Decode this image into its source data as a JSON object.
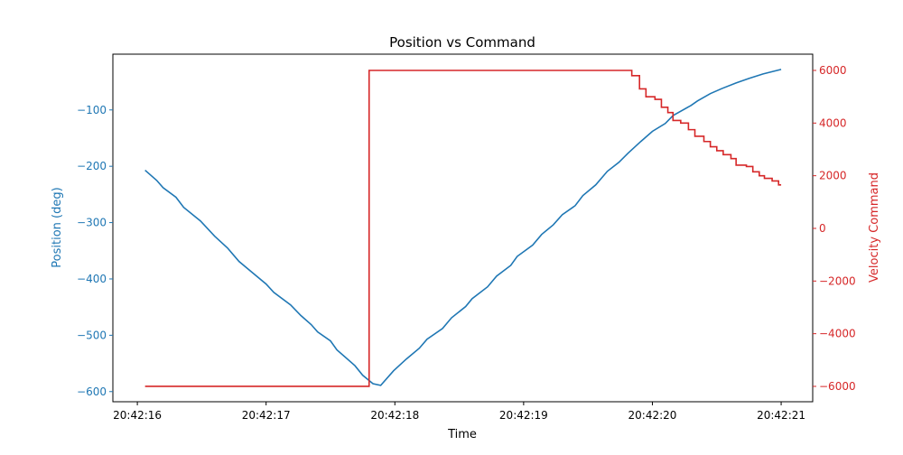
{
  "chart_data": {
    "type": "line",
    "title": "Position vs Command",
    "xlabel": "Time",
    "ylabel": "Position (deg)",
    "y2label": "Velocity Command",
    "colors": {
      "position": "#1f77b4",
      "command": "#d62728"
    },
    "grid": false,
    "xlim": [
      "20:42:15.81",
      "20:42:21.245"
    ],
    "ylim": [
      -618,
      -1
    ],
    "y2lim": [
      -6584,
      6617
    ],
    "xticks": [
      "20:42:16",
      "20:42:17",
      "20:42:18",
      "20:42:19",
      "20:42:20",
      "20:42:21"
    ],
    "yticks": [
      -600,
      -500,
      -400,
      -300,
      -200,
      -100
    ],
    "yticklabels": [
      "−600",
      "−500",
      "−400",
      "−300",
      "−200",
      "−100"
    ],
    "y2ticks": [
      -6000,
      -4000,
      -2000,
      0,
      2000,
      4000,
      6000
    ],
    "y2ticklabels": [
      "−6000",
      "−4000",
      "−2000",
      "0",
      "2000",
      "4000",
      "6000"
    ],
    "series": [
      {
        "axis": "left",
        "style": "line",
        "x": [
          "20:42:16.06",
          "20:42:16.15",
          "20:42:16.20",
          "20:42:16.30",
          "20:42:16.36",
          "20:42:16.49",
          "20:42:16.60",
          "20:42:16.70",
          "20:42:16.79",
          "20:42:16.90",
          "20:42:17.00",
          "20:42:17.06",
          "20:42:17.19",
          "20:42:17.27",
          "20:42:17.35",
          "20:42:17.40",
          "20:42:17.50",
          "20:42:17.55",
          "20:42:17.69",
          "20:42:17.75",
          "20:42:17.83",
          "20:42:17.89",
          "20:42:17.99",
          "20:42:18.09",
          "20:42:18.19",
          "20:42:18.25",
          "20:42:18.37",
          "20:42:18.44",
          "20:42:18.55",
          "20:42:18.60",
          "20:42:18.72",
          "20:42:18.79",
          "20:42:18.90",
          "20:42:18.95",
          "20:42:19.07",
          "20:42:19.14",
          "20:42:19.23",
          "20:42:19.30",
          "20:42:19.40",
          "20:42:19.46",
          "20:42:19.56",
          "20:42:19.65",
          "20:42:19.74",
          "20:42:19.81",
          "20:42:19.91",
          "20:42:20.00",
          "20:42:20.10",
          "20:42:20.16",
          "20:42:20.30",
          "20:42:20.35",
          "20:42:20.45",
          "20:42:20.54",
          "20:42:20.65",
          "20:42:20.75",
          "20:42:20.86",
          "20:42:21.00"
        ],
        "y": [
          -207,
          -225,
          -238,
          -255,
          -273,
          -297,
          -324,
          -345,
          -369,
          -390,
          -409,
          -424,
          -446,
          -465,
          -481,
          -494,
          -510,
          -526,
          -554,
          -571,
          -586,
          -589,
          -563,
          -542,
          -523,
          -507,
          -488,
          -469,
          -449,
          -435,
          -414,
          -395,
          -376,
          -360,
          -340,
          -321,
          -304,
          -286,
          -270,
          -252,
          -233,
          -209,
          -193,
          -177,
          -156,
          -138,
          -124,
          -110,
          -92,
          -84,
          -71,
          -62,
          -52,
          -44,
          -36,
          -28
        ]
      },
      {
        "axis": "right",
        "style": "step-post",
        "x": [
          "20:42:16.06",
          "20:42:17.80",
          "20:42:19.84",
          "20:42:19.90",
          "20:42:19.95",
          "20:42:20.02",
          "20:42:20.07",
          "20:42:20.12",
          "20:42:20.16",
          "20:42:20.22",
          "20:42:20.28",
          "20:42:20.33",
          "20:42:20.40",
          "20:42:20.45",
          "20:42:20.50",
          "20:42:20.55",
          "20:42:20.61",
          "20:42:20.65",
          "20:42:20.73",
          "20:42:20.78",
          "20:42:20.83",
          "20:42:20.87",
          "20:42:20.93",
          "20:42:20.98",
          "20:42:21.00"
        ],
        "y": [
          -6000,
          6000,
          5800,
          5300,
          5000,
          4900,
          4600,
          4400,
          4100,
          4000,
          3750,
          3500,
          3300,
          3100,
          2950,
          2800,
          2650,
          2400,
          2350,
          2150,
          2000,
          1900,
          1800,
          1650,
          1650
        ]
      }
    ]
  }
}
